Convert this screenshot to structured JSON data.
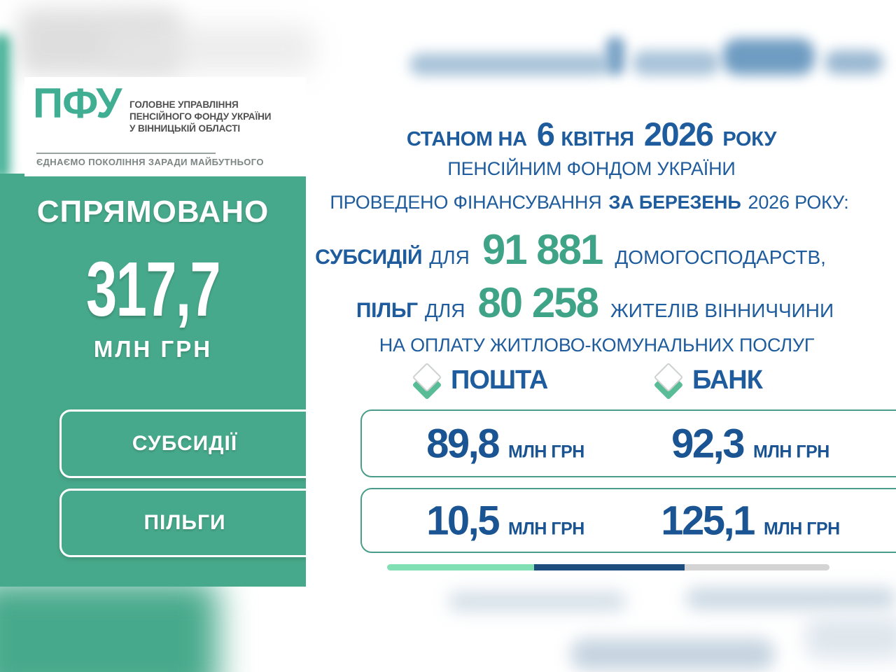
{
  "chart_data": {
    "type": "table",
    "title": "СПРЯМОВАНО 317,7 МЛН ГРН",
    "as_of_date": "6 квітня 2026 року",
    "financing_month": "березень 2026 року",
    "total_directed_mln_grn": 317.7,
    "subsidies_households": 91881,
    "privileges_residents": 80258,
    "columns": [
      "ПОШТА",
      "БАНК"
    ],
    "rows": [
      {
        "row": "СУБСИДІЇ",
        "poshta_mln_grn": 89.8,
        "bank_mln_grn": 92.3
      },
      {
        "row": "ПІЛЬГИ",
        "poshta_mln_grn": 10.5,
        "bank_mln_grn": 125.1
      }
    ]
  },
  "logo": {
    "abbr": "ПФУ",
    "org_lines": [
      "ГОЛОВНЕ УПРАВЛІННЯ",
      "ПЕНСІЙНОГО ФОНДУ УКРАЇНИ",
      "У ВІННИЦЬКІЙ ОБЛАСТІ"
    ],
    "tagline": "ЄДНАЄМО ПОКОЛІННЯ ЗАРАДИ МАЙБУТНЬОГО"
  },
  "left_panel": {
    "title": "СПРЯМОВАНО",
    "amount": "317,7",
    "amount_unit": "МЛН ГРН",
    "buttons": [
      {
        "label": "СУБСИДІЇ"
      },
      {
        "label": "ПІЛЬГИ"
      }
    ]
  },
  "header": {
    "line1_prefix": "СТАНОМ НА",
    "line1_day": "6",
    "line1_month": "КВІТНЯ",
    "line1_year": "2026",
    "line1_suffix": "РОКУ",
    "line2": "ПЕНСІЙНИМ ФОНДОМ УКРАЇНИ",
    "line3_prefix": "ПРОВЕДЕНО ФІНАНСУВАННЯ",
    "line3_bold": "ЗА БЕРЕЗЕНЬ",
    "line3_suffix": "2026 РОКУ:"
  },
  "stats": [
    {
      "label": "СУБСИДІЙ",
      "connector": "ДЛЯ",
      "value": "91 881",
      "suffix": "ДОМОГОСПОДАРСТВ,"
    },
    {
      "label": "ПІЛЬГ",
      "connector": "ДЛЯ",
      "value": "80 258",
      "suffix": "ЖИТЕЛІВ ВІННИЧЧИНИ"
    }
  ],
  "purpose": "НА ОПЛАТУ ЖИТЛОВО-КОМУНАЛЬНИХ ПОСЛУГ",
  "channels": {
    "col1": "ПОШТА",
    "col2": "БАНК",
    "icon": "diamond-check-icon",
    "rows": [
      {
        "col1_value": "89,8",
        "col1_unit": "МЛН ГРН",
        "col2_value": "92,3",
        "col2_unit": "МЛН ГРН"
      },
      {
        "col1_value": "10,5",
        "col1_unit": "МЛН ГРН",
        "col2_value": "125,1",
        "col2_unit": "МЛН ГРН"
      }
    ]
  },
  "progress": {
    "segments": [
      {
        "name": "mint",
        "color": "#80e0b4",
        "pct": 33.2
      },
      {
        "name": "navy",
        "color": "#1d4d7d",
        "pct": 34.0
      },
      {
        "name": "gray",
        "color": "#d4d4d4",
        "pct": 32.8
      }
    ]
  },
  "colors": {
    "brand_green": "#47a98b",
    "logo_teal": "#3fae93",
    "text_navy": "#1e5c9d",
    "value_navy": "#1a5492",
    "number_green": "#3fa487",
    "box_border_teal": "#4a9d8a"
  }
}
